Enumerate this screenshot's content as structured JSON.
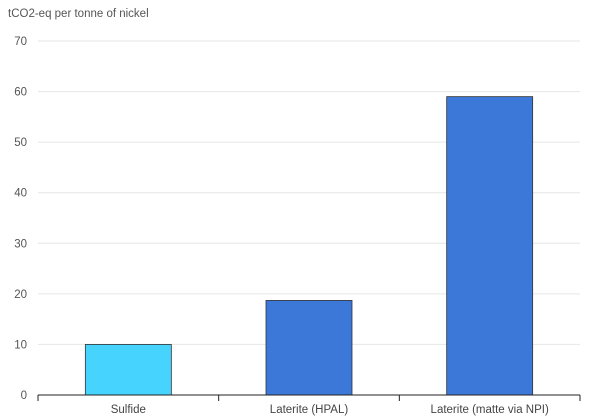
{
  "chart_data": {
    "type": "bar",
    "y_unit_label": "tCO2-eq per tonne of nickel",
    "title": "",
    "xlabel": "",
    "ylabel": "",
    "categories": [
      "Sulfide",
      "Laterite (HPAL)",
      "Laterite (matte via NPI)"
    ],
    "values": [
      10,
      18.7,
      59
    ],
    "bar_colors": [
      "#46D4FF",
      "#3B78D8",
      "#3B78D8"
    ],
    "ylim": [
      0,
      70
    ],
    "yticks": [
      0,
      10,
      20,
      30,
      40,
      50,
      60,
      70
    ],
    "grid": true,
    "legend": "none"
  }
}
